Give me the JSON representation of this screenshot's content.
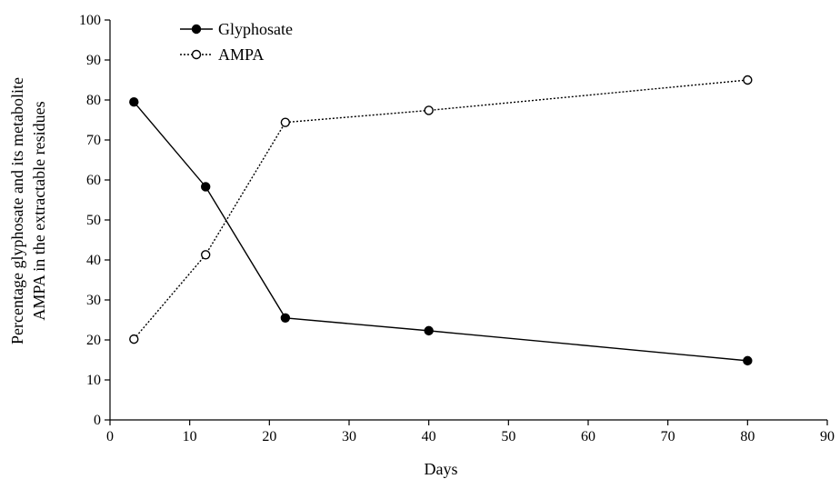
{
  "chart_data": {
    "type": "line",
    "title": "",
    "xlabel": "Days",
    "ylabel_lines": [
      "Percentage glyphosate and its metabolite",
      "AMPA in the extractable residues"
    ],
    "xlim": [
      0,
      90
    ],
    "ylim": [
      0,
      100
    ],
    "xticks": [
      0,
      10,
      20,
      30,
      40,
      50,
      60,
      70,
      80,
      90
    ],
    "yticks": [
      0,
      10,
      20,
      30,
      40,
      50,
      60,
      70,
      80,
      90,
      100
    ],
    "grid": false,
    "legend_position": "top-left",
    "x": [
      3,
      12,
      22,
      40,
      80
    ],
    "series": [
      {
        "name": "Glyphosate",
        "values": [
          79.5,
          58.3,
          25.5,
          22.3,
          14.8
        ],
        "marker": "filled-circle",
        "line_style": "solid",
        "color": "#000000"
      },
      {
        "name": "AMPA",
        "values": [
          20.2,
          41.3,
          74.4,
          77.4,
          85.0
        ],
        "marker": "open-circle",
        "line_style": "dotted",
        "color": "#000000"
      }
    ]
  }
}
